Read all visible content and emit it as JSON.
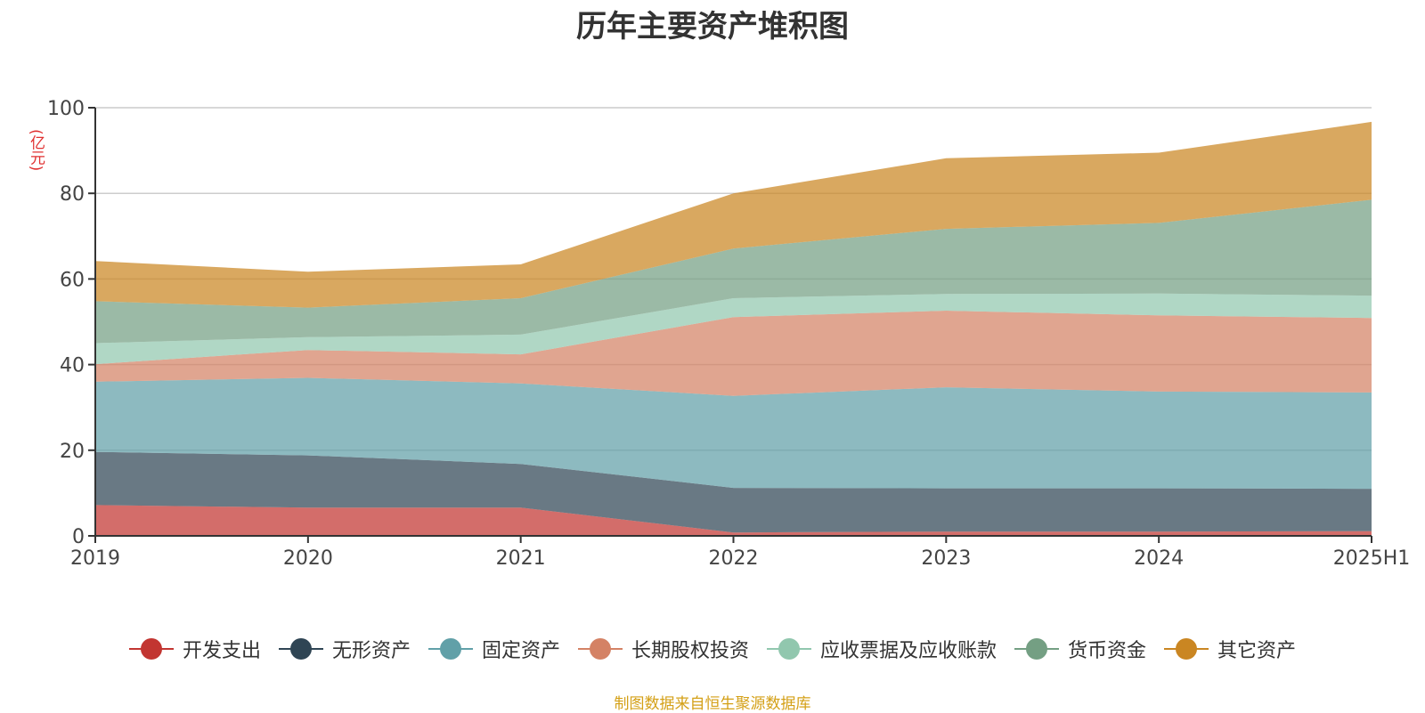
{
  "chart_data": {
    "type": "area",
    "stacked": true,
    "title": "历年主要资产堆积图",
    "unit": "(亿元)",
    "categories": [
      "2019",
      "2020",
      "2021",
      "2022",
      "2023",
      "2024",
      "2025H1"
    ],
    "ylim": [
      0,
      100
    ],
    "yticks": [
      0,
      20,
      40,
      60,
      80,
      100
    ],
    "grid": true,
    "legend_position": "bottom",
    "series": [
      {
        "name": "开发支出",
        "values": [
          7.2,
          6.6,
          6.6,
          0.8,
          1.0,
          1.0,
          1.1
        ],
        "color": "#c23531"
      },
      {
        "name": "无形资产",
        "values": [
          12.4,
          12.2,
          10.2,
          10.4,
          10.1,
          10.1,
          9.9
        ],
        "color": "#2f4554"
      },
      {
        "name": "固定资产",
        "values": [
          16.4,
          18.1,
          18.8,
          21.5,
          23.6,
          22.6,
          22.5
        ],
        "color": "#61a0a8"
      },
      {
        "name": "长期股权投资",
        "values": [
          4.1,
          6.5,
          6.8,
          18.4,
          17.9,
          17.8,
          17.4
        ],
        "color": "#d48265"
      },
      {
        "name": "应收票据及应收账款",
        "values": [
          4.9,
          3.0,
          4.6,
          4.4,
          3.9,
          5.1,
          5.2
        ],
        "color": "#91c7ae"
      },
      {
        "name": "货币资金",
        "values": [
          9.8,
          6.9,
          8.5,
          11.6,
          15.2,
          16.5,
          22.4
        ],
        "color": "#749f83"
      },
      {
        "name": "其它资产",
        "values": [
          9.4,
          8.4,
          7.9,
          12.9,
          16.5,
          16.4,
          18.2
        ],
        "color": "#ca8622"
      }
    ],
    "source_note": "制图数据来自恒生聚源数据库"
  }
}
